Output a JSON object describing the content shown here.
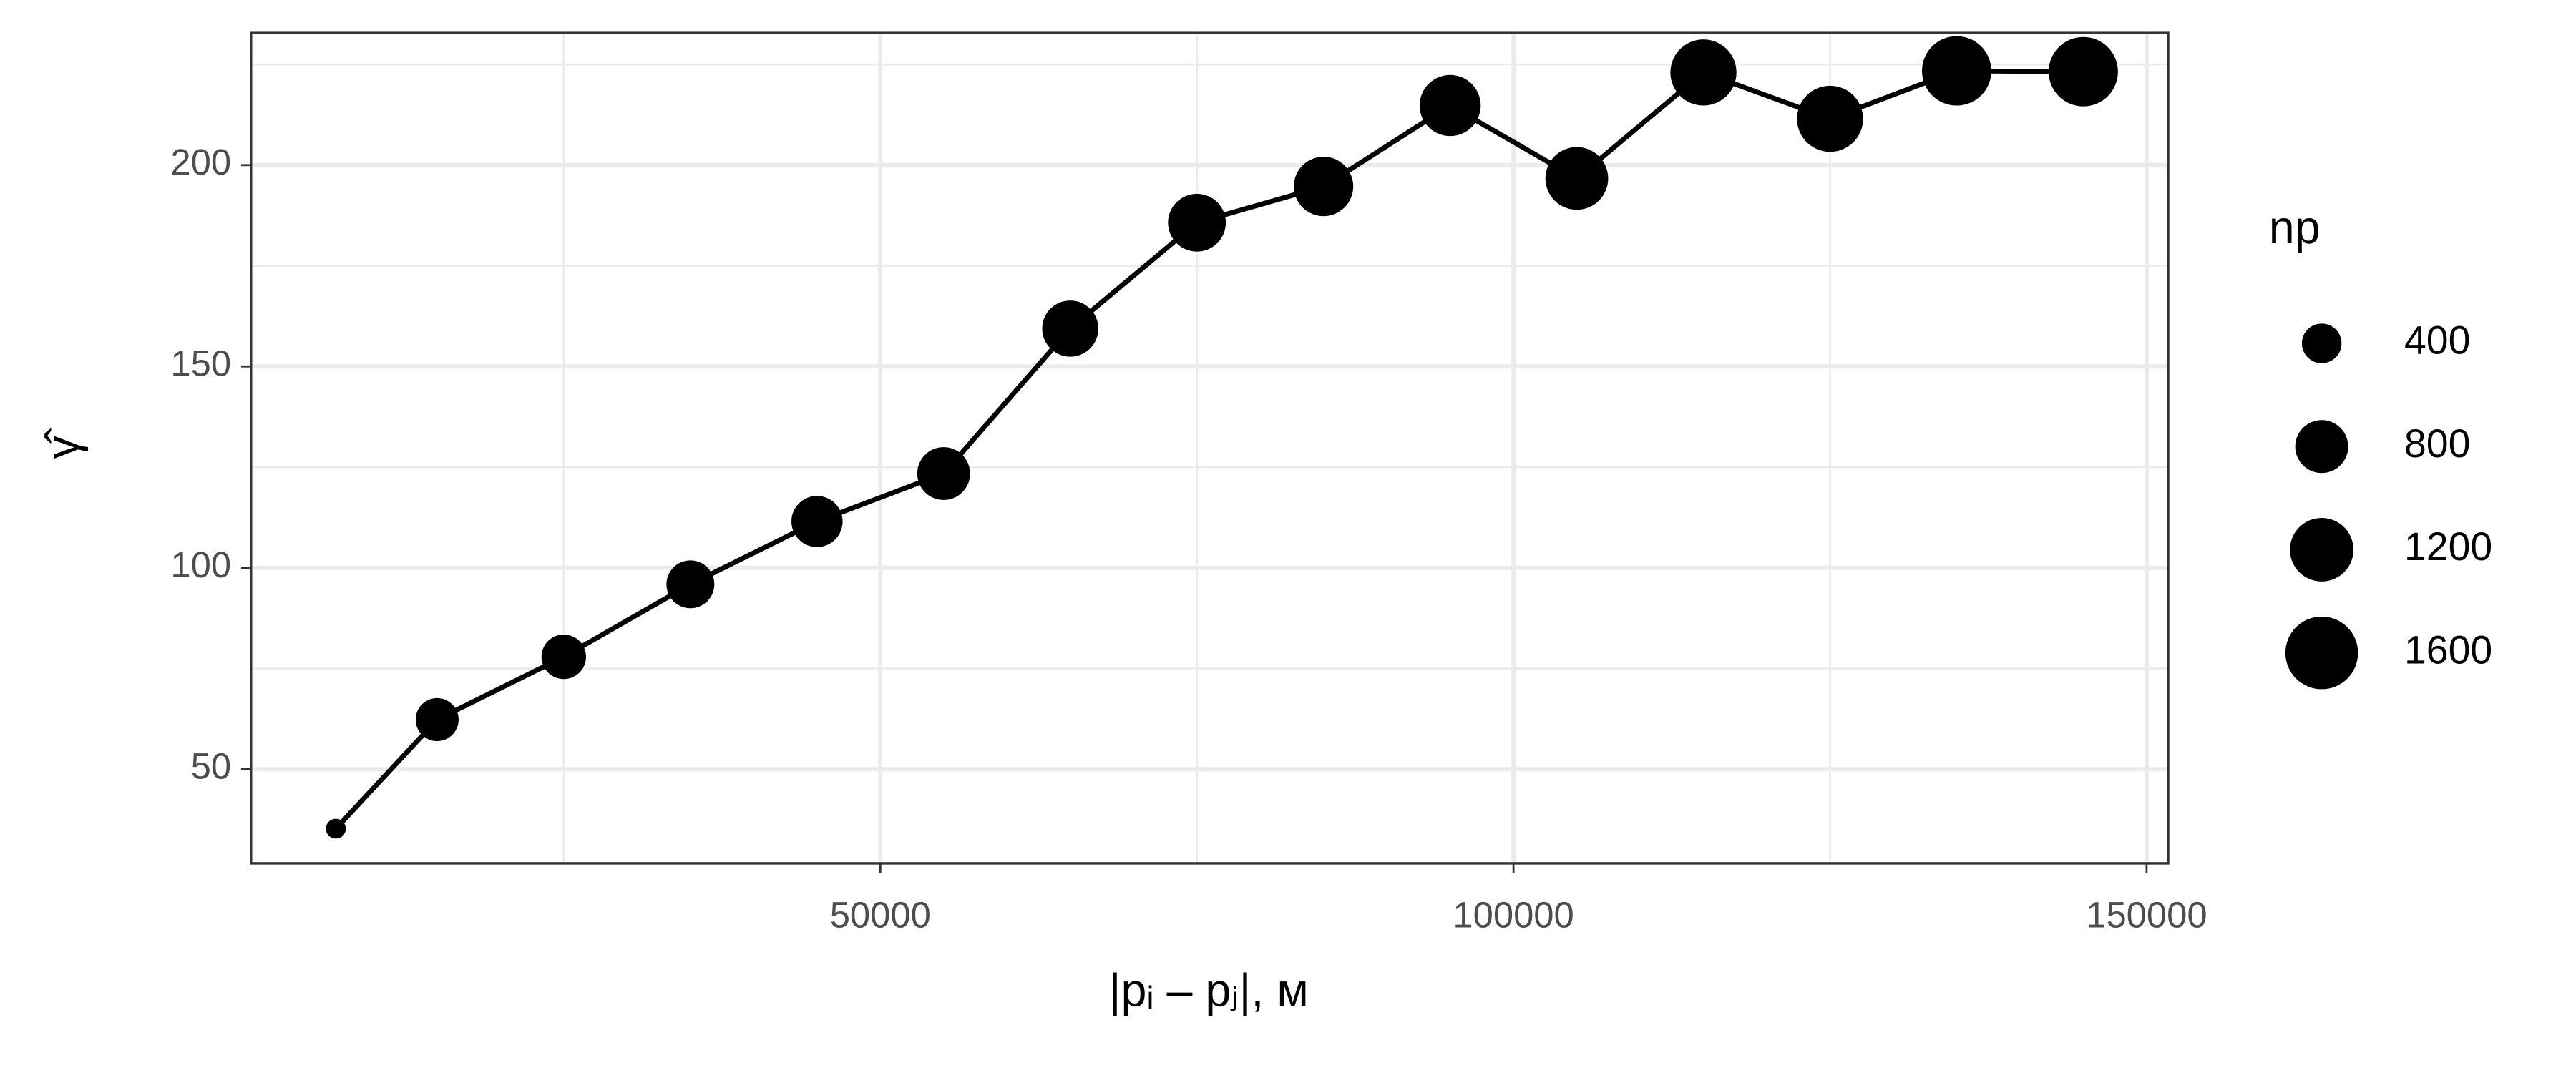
{
  "chart_data": {
    "type": "scatter-line",
    "x_label": "|pᵢ – pⱼ|, м",
    "y_label": "γ̂",
    "x": [
      7000,
      15000,
      25000,
      35000,
      45000,
      55000,
      65000,
      75000,
      85000,
      95000,
      105000,
      115000,
      125000,
      135000,
      145000
    ],
    "series": [
      {
        "color": "#000000",
        "values": [
          35.2,
          62.3,
          77.9,
          95.9,
          111.5,
          123.4,
          159.4,
          185.7,
          194.7,
          214.8,
          196.7,
          223,
          211.5,
          223.4,
          223.2
        ],
        "sizes": [
          20,
          490,
          535,
          634,
          740,
          796,
          913,
          973,
          1036,
          1100,
          1167,
          1305,
          1305,
          1450,
          1450
        ]
      }
    ],
    "xlim": [
      300,
      151700
    ],
    "xticks": [
      50000,
      100000,
      150000
    ],
    "xminor": [
      25000,
      75000,
      125000
    ],
    "ylim": [
      26.6,
      232.8
    ],
    "yticks": [
      50,
      100,
      150,
      200
    ],
    "yminor": [
      75,
      125,
      175,
      225
    ],
    "grid": true,
    "size_legend": {
      "title": "np",
      "values": [
        400,
        800,
        1200,
        1600
      ]
    }
  }
}
